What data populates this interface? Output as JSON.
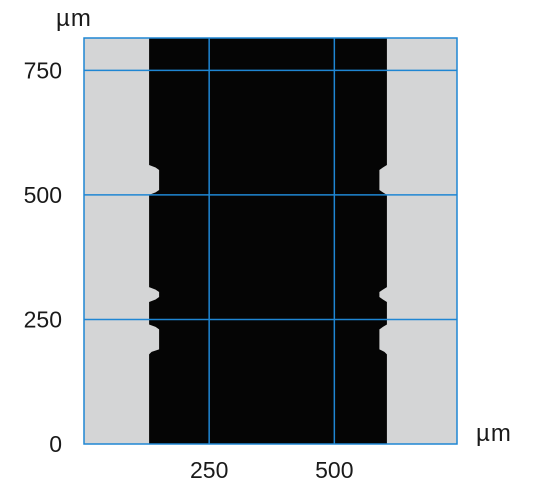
{
  "figure": {
    "x_unit": "µm",
    "y_unit": "µm",
    "x_ticks": [
      {
        "value": 250,
        "label": "250"
      },
      {
        "value": 500,
        "label": "500"
      }
    ],
    "y_ticks": [
      {
        "value": 0,
        "label": "0"
      },
      {
        "value": 250,
        "label": "250"
      },
      {
        "value": 500,
        "label": "500"
      },
      {
        "value": 750,
        "label": "750"
      }
    ],
    "x_range": [
      0,
      745
    ],
    "y_range": [
      0,
      815
    ],
    "gridlines_x": [
      250,
      500
    ],
    "gridlines_y": [
      250,
      500,
      750
    ],
    "colors": {
      "background": "#d4d5d6",
      "channel": "#050505",
      "grid": "#1f86d3",
      "text": "#1a1a1a"
    },
    "channel": {
      "left_edge_um": [
        [
          0,
          130
        ],
        [
          180,
          130
        ],
        [
          185,
          135
        ],
        [
          190,
          150
        ],
        [
          230,
          150
        ],
        [
          235,
          143
        ],
        [
          240,
          130
        ],
        [
          285,
          130
        ],
        [
          290,
          143
        ],
        [
          295,
          150
        ],
        [
          305,
          150
        ],
        [
          310,
          143
        ],
        [
          315,
          130
        ],
        [
          500,
          130
        ],
        [
          505,
          143
        ],
        [
          510,
          150
        ],
        [
          550,
          150
        ],
        [
          555,
          143
        ],
        [
          560,
          130
        ],
        [
          815,
          130
        ]
      ],
      "right_edge_um": [
        [
          0,
          605
        ],
        [
          180,
          605
        ],
        [
          185,
          600
        ],
        [
          190,
          590
        ],
        [
          230,
          590
        ],
        [
          235,
          597
        ],
        [
          240,
          605
        ],
        [
          285,
          605
        ],
        [
          290,
          597
        ],
        [
          295,
          590
        ],
        [
          305,
          590
        ],
        [
          310,
          597
        ],
        [
          315,
          605
        ],
        [
          500,
          605
        ],
        [
          505,
          597
        ],
        [
          510,
          590
        ],
        [
          550,
          590
        ],
        [
          555,
          597
        ],
        [
          560,
          605
        ],
        [
          815,
          605
        ]
      ]
    }
  }
}
